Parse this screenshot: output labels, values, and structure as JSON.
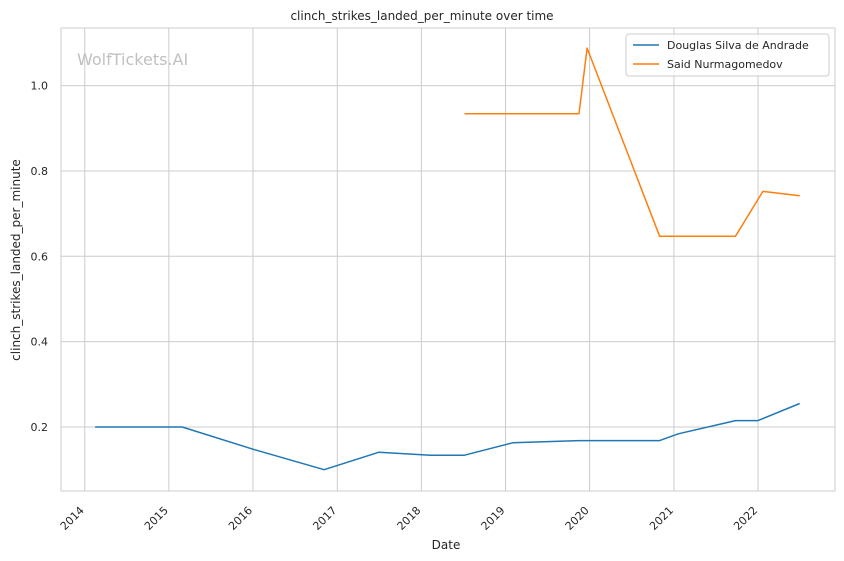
{
  "chart_data": {
    "type": "line",
    "title": "clinch_strikes_landed_per_minute over time",
    "xlabel": "Date",
    "ylabel": "clinch_strikes_landed_per_minute",
    "watermark": "WolfTickets.AI",
    "xlim": [
      "2013-09-20",
      "2022-12-01"
    ],
    "ylim": [
      0.05,
      1.135
    ],
    "x_ticks": [
      "2014",
      "2015",
      "2016",
      "2017",
      "2018",
      "2019",
      "2020",
      "2021",
      "2022"
    ],
    "y_ticks": [
      "0.2",
      "0.4",
      "0.6",
      "0.8",
      "1.0"
    ],
    "grid": true,
    "legend_position": "top-right",
    "series": [
      {
        "name": "Douglas Silva de Andrade",
        "color": "#1f77b4",
        "points": [
          [
            "2014-02-15",
            0.2
          ],
          [
            "2015-02-28",
            0.2
          ],
          [
            "2016-01-01",
            0.148
          ],
          [
            "2016-11-05",
            0.1
          ],
          [
            "2017-07-01",
            0.141
          ],
          [
            "2018-02-10",
            0.134
          ],
          [
            "2018-07-07",
            0.134
          ],
          [
            "2019-02-01",
            0.163
          ],
          [
            "2019-11-15",
            0.168
          ],
          [
            "2020-10-31",
            0.168
          ],
          [
            "2021-01-20",
            0.184
          ],
          [
            "2021-09-25",
            0.215
          ],
          [
            "2022-01-01",
            0.215
          ],
          [
            "2022-07-01",
            0.255
          ]
        ]
      },
      {
        "name": "Said Nurmagomedov",
        "color": "#ff7f0e",
        "points": [
          [
            "2018-07-07",
            0.934
          ],
          [
            "2019-11-16",
            0.934
          ],
          [
            "2019-12-21",
            1.088
          ],
          [
            "2020-10-31",
            0.647
          ],
          [
            "2021-09-25",
            0.647
          ],
          [
            "2022-01-22",
            0.752
          ],
          [
            "2022-07-01",
            0.742
          ]
        ]
      }
    ]
  }
}
